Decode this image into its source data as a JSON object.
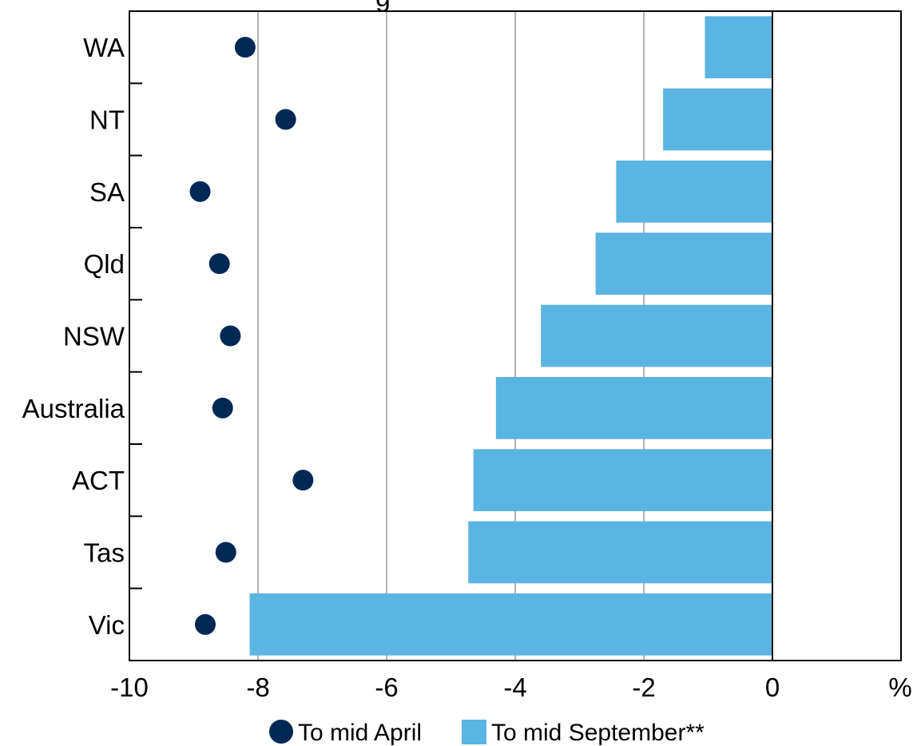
{
  "chart_data": {
    "type": "bar",
    "orientation": "horizontal",
    "title_fragment": "g",
    "categories": [
      "WA",
      "NT",
      "SA",
      "Qld",
      "NSW",
      "Australia",
      "ACT",
      "Tas",
      "Vic"
    ],
    "series": [
      {
        "name": "To mid April",
        "mark": "dot",
        "color": "#002855",
        "values": [
          -8.2,
          -7.57,
          -8.9,
          -8.6,
          -8.43,
          -8.55,
          -7.3,
          -8.5,
          -8.82
        ]
      },
      {
        "name": "To mid September**",
        "mark": "bar",
        "color": "#5bb4e2",
        "values": [
          -1.05,
          -1.7,
          -2.43,
          -2.75,
          -3.6,
          -4.3,
          -4.65,
          -4.73,
          -8.13
        ]
      }
    ],
    "xlim": [
      -10,
      2
    ],
    "x_ticks": [
      "-10",
      "-8",
      "-6",
      "-4",
      "-2",
      "0"
    ],
    "x_tick_values": [
      -10,
      -8,
      -6,
      -4,
      -2,
      0
    ],
    "x_unit": "%",
    "grid": "vertical",
    "grid_color": "#b3b3b3",
    "legend_position": "bottom"
  }
}
